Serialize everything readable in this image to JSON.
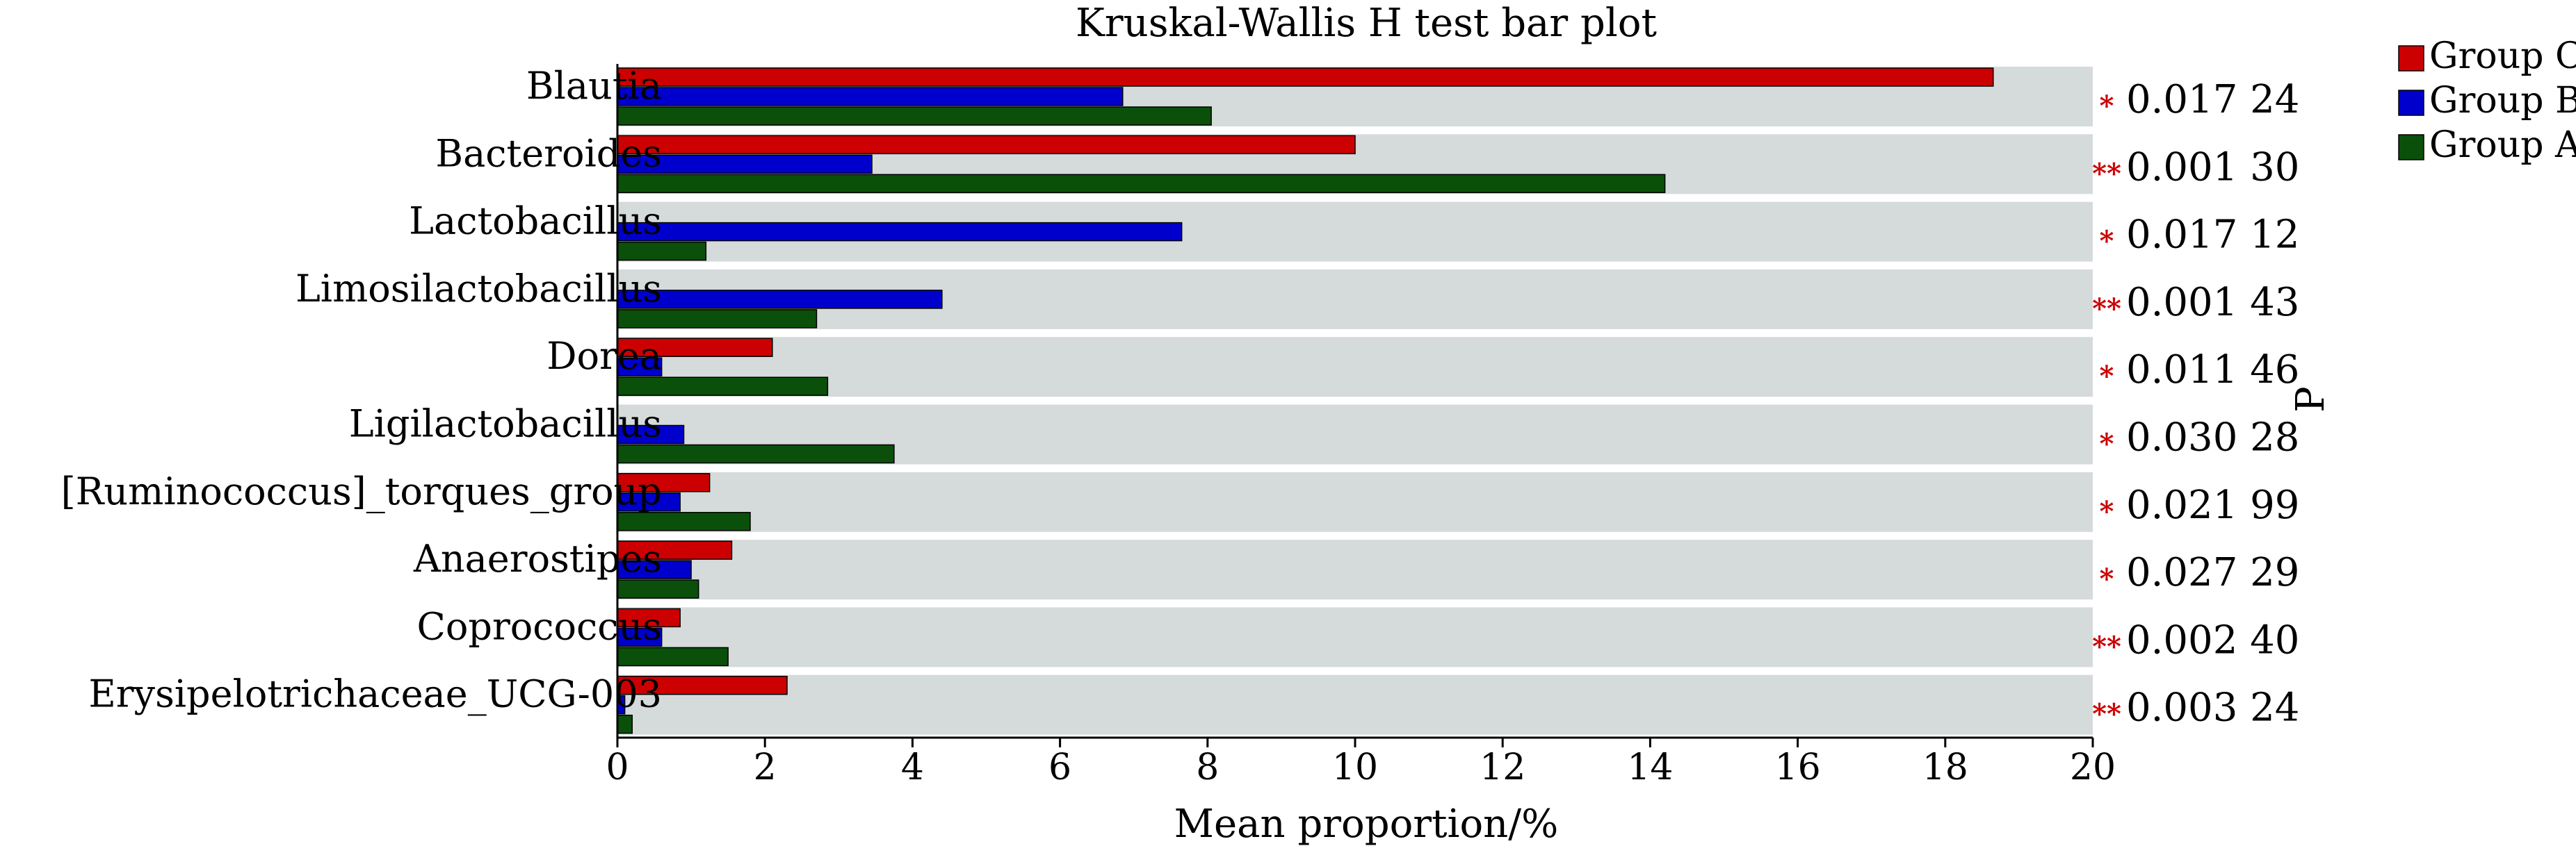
{
  "chart_data": {
    "type": "bar",
    "orientation": "horizontal",
    "title": "Kruskal-Wallis H test bar plot",
    "xlabel": "Mean proportion/%",
    "right_axis_label": "P",
    "xlim": [
      0,
      20
    ],
    "xticks": [
      0,
      2,
      4,
      6,
      8,
      10,
      12,
      14,
      16,
      18,
      20
    ],
    "grid": false,
    "legend_position": "top-right",
    "categories": [
      "Blautia",
      "Bacteroides",
      "Lactobacillus",
      "Limosilactobacillus",
      "Dorea",
      "Ligilactobacillus",
      "[Ruminococcus]_torques_group",
      "Anaerostipes",
      "Coprococcus",
      "Erysipelotrichaceae_UCG-003"
    ],
    "series": [
      {
        "name": "Group C",
        "color": "#cc0000",
        "values": [
          18.65,
          10.0,
          0.0,
          0.0,
          2.1,
          0.0,
          1.25,
          1.55,
          0.85,
          2.3
        ]
      },
      {
        "name": "Group B",
        "color": "#0000cc",
        "values": [
          6.85,
          3.45,
          7.65,
          4.4,
          0.6,
          0.9,
          0.85,
          1.0,
          0.6,
          0.1
        ]
      },
      {
        "name": "Group A",
        "color": "#0a500a",
        "values": [
          8.05,
          14.2,
          1.2,
          2.7,
          2.85,
          3.75,
          1.8,
          1.1,
          1.5,
          0.2
        ]
      }
    ],
    "p_values": [
      "0.017 24",
      "0.001 30",
      "0.017 12",
      "0.001 43",
      "0.011 46",
      "0.030 28",
      "0.021 99",
      "0.027 29",
      "0.002 40",
      "0.003 24"
    ],
    "significance": [
      "*",
      "**",
      "*",
      "**",
      "*",
      "*",
      "*",
      "*",
      "**",
      "**"
    ],
    "colors": {
      "band": "#d5dada",
      "significance": "#cc0000"
    }
  }
}
